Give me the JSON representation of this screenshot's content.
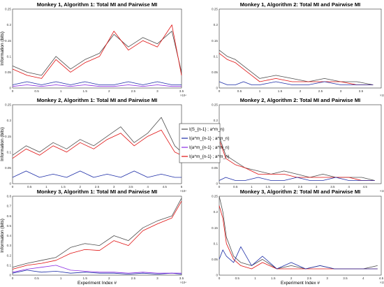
{
  "colors": {
    "total": "#4d4d4d",
    "pair_state": "#222222",
    "pair_prev": "#1f2fa8",
    "pair_red": "#e01010",
    "pair_purple": "#8a2be2"
  },
  "legend": {
    "entries": [
      "I(S_{n-1} ; a^m_n)",
      "I(a^m_{n-1} ; a^m_n)",
      "I(a^m_{n-1} ; a^m_n)",
      "I(a^m_{n-1} ; a^m_n)"
    ],
    "colors": [
      "#4d4d4d",
      "#1f2fa8",
      "#8a2be2",
      "#e01010"
    ]
  },
  "chart_data": [
    {
      "type": "line",
      "title": "Monkey 1, Algorithm 1: Total MI and Pairwise MI",
      "ylabel": "Information (bits)",
      "xlabel": "",
      "xlim": [
        0,
        3.5
      ],
      "ylim": [
        0,
        0.25
      ],
      "x_multiplier": "×10⁴",
      "xticks": [
        "0",
        "0.5",
        "1",
        "1.5",
        "2",
        "2.5",
        "3",
        "3.5"
      ],
      "yticks": [
        "0",
        "0.05",
        "0.1",
        "0.15",
        "0.2",
        "0.25"
      ],
      "series": [
        {
          "color": "#4d4d4d",
          "x": [
            0,
            0.3,
            0.6,
            0.9,
            1.2,
            1.5,
            1.8,
            2.1,
            2.4,
            2.7,
            3.0,
            3.3,
            3.5
          ],
          "values": [
            0.07,
            0.05,
            0.04,
            0.1,
            0.06,
            0.09,
            0.11,
            0.17,
            0.13,
            0.16,
            0.14,
            0.18,
            0.05
          ]
        },
        {
          "color": "#e01010",
          "x": [
            0,
            0.3,
            0.6,
            0.9,
            1.2,
            1.5,
            1.8,
            2.1,
            2.4,
            2.7,
            3.0,
            3.3,
            3.5
          ],
          "values": [
            0.06,
            0.04,
            0.03,
            0.09,
            0.05,
            0.08,
            0.1,
            0.18,
            0.12,
            0.15,
            0.13,
            0.2,
            0.04
          ]
        },
        {
          "color": "#1f2fa8",
          "x": [
            0,
            0.3,
            0.6,
            0.9,
            1.2,
            1.5,
            1.8,
            2.1,
            2.4,
            2.7,
            3.0,
            3.3,
            3.5
          ],
          "values": [
            0.01,
            0.02,
            0.01,
            0.02,
            0.01,
            0.02,
            0.01,
            0.01,
            0.02,
            0.01,
            0.02,
            0.01,
            0.01
          ]
        },
        {
          "color": "#8a2be2",
          "x": [
            0,
            0.3,
            0.6,
            0.9,
            1.2,
            1.5,
            1.8,
            2.1,
            2.4,
            2.7,
            3.0,
            3.3,
            3.5
          ],
          "values": [
            0.005,
            0.01,
            0.005,
            0.01,
            0.005,
            0.01,
            0.005,
            0.005,
            0.01,
            0.005,
            0.01,
            0.005,
            0.005
          ]
        }
      ]
    },
    {
      "type": "line",
      "title": "Monkey 1, Algorithm 2: Total MI and Pairwise MI",
      "ylabel": "",
      "xlabel": "",
      "xlim": [
        0,
        4
      ],
      "ylim": [
        0,
        0.25
      ],
      "x_multiplier": "×10⁴",
      "xticks": [
        "0",
        "0.5",
        "1",
        "1.5",
        "2",
        "2.5",
        "3",
        "3.5"
      ],
      "yticks": [
        "0",
        "0.05",
        "0.1",
        "0.15",
        "0.2",
        "0.25"
      ],
      "series": [
        {
          "color": "#4d4d4d",
          "x": [
            0,
            0.2,
            0.4,
            0.6,
            0.8,
            1.0,
            1.4,
            1.8,
            2.2,
            2.6,
            3.0,
            3.4,
            3.8
          ],
          "values": [
            0.12,
            0.1,
            0.09,
            0.07,
            0.05,
            0.03,
            0.04,
            0.03,
            0.02,
            0.03,
            0.02,
            0.02,
            0.01
          ]
        },
        {
          "color": "#e01010",
          "x": [
            0,
            0.2,
            0.4,
            0.6,
            0.8,
            1.0,
            1.4,
            1.8,
            2.2,
            2.6,
            3.0,
            3.4,
            3.8
          ],
          "values": [
            0.11,
            0.09,
            0.08,
            0.06,
            0.04,
            0.02,
            0.03,
            0.02,
            0.02,
            0.02,
            0.02,
            0.01,
            0.01
          ]
        },
        {
          "color": "#1f2fa8",
          "x": [
            0,
            0.2,
            0.4,
            0.6,
            0.8,
            1.0,
            1.4,
            1.8,
            2.2,
            2.6,
            3.0,
            3.4,
            3.8
          ],
          "values": [
            0.02,
            0.01,
            0.01,
            0.02,
            0.01,
            0.01,
            0.02,
            0.01,
            0.01,
            0.02,
            0.01,
            0.01,
            0.01
          ]
        }
      ]
    },
    {
      "type": "line",
      "title": "Monkey 2, Algorithm 1: Total MI and Pairwise MI",
      "ylabel": "Information (bits)",
      "xlabel": "",
      "xlim": [
        0,
        5
      ],
      "ylim": [
        0,
        0.25
      ],
      "x_multiplier": "×10⁴",
      "xticks": [
        "0",
        "0.5",
        "1",
        "1.5",
        "2",
        "2.5",
        "3",
        "3.5",
        "4",
        "4.5",
        "5"
      ],
      "yticks": [
        "0",
        "0.05",
        "0.1",
        "0.15",
        "0.2",
        "0.25"
      ],
      "series": [
        {
          "color": "#4d4d4d",
          "x": [
            0,
            0.4,
            0.8,
            1.2,
            1.6,
            2.0,
            2.4,
            2.8,
            3.2,
            3.6,
            4.0,
            4.4,
            4.8,
            5.0
          ],
          "values": [
            0.09,
            0.12,
            0.1,
            0.13,
            0.11,
            0.14,
            0.12,
            0.15,
            0.18,
            0.13,
            0.16,
            0.21,
            0.12,
            0.1
          ]
        },
        {
          "color": "#e01010",
          "x": [
            0,
            0.4,
            0.8,
            1.2,
            1.6,
            2.0,
            2.4,
            2.8,
            3.2,
            3.6,
            4.0,
            4.4,
            4.8,
            5.0
          ],
          "values": [
            0.08,
            0.11,
            0.09,
            0.12,
            0.1,
            0.13,
            0.11,
            0.14,
            0.16,
            0.12,
            0.15,
            0.17,
            0.1,
            0.09
          ]
        },
        {
          "color": "#1f2fa8",
          "x": [
            0,
            0.4,
            0.8,
            1.2,
            1.6,
            2.0,
            2.4,
            2.8,
            3.2,
            3.6,
            4.0,
            4.4,
            4.8,
            5.0
          ],
          "values": [
            0.02,
            0.04,
            0.02,
            0.03,
            0.02,
            0.04,
            0.02,
            0.03,
            0.02,
            0.04,
            0.02,
            0.03,
            0.02,
            0.02
          ]
        }
      ]
    },
    {
      "type": "line",
      "title": "Monkey 2, Algorithm 2: Total MI and Pairwise MI",
      "ylabel": "",
      "xlabel": "",
      "xlim": [
        0,
        5
      ],
      "ylim": [
        0,
        0.25
      ],
      "x_multiplier": "×10⁴",
      "xticks": [
        "0",
        "0.5",
        "1",
        "1.5",
        "2",
        "2.5",
        "3",
        "3.5",
        "4",
        "4.5"
      ],
      "yticks": [
        "0",
        "0.05",
        "0.1",
        "0.15",
        "0.2",
        "0.25"
      ],
      "series": [
        {
          "color": "#4d4d4d",
          "x": [
            0,
            0.2,
            0.5,
            0.8,
            1.2,
            1.6,
            2.0,
            2.4,
            2.8,
            3.2,
            3.6,
            4.0,
            4.4,
            4.8
          ],
          "values": [
            0.15,
            0.09,
            0.07,
            0.05,
            0.04,
            0.03,
            0.04,
            0.03,
            0.02,
            0.03,
            0.02,
            0.02,
            0.02,
            0.01
          ]
        },
        {
          "color": "#e01010",
          "x": [
            0,
            0.2,
            0.5,
            0.8,
            1.2,
            1.6,
            2.0,
            2.4,
            2.8,
            3.2,
            3.6,
            4.0,
            4.4,
            4.8
          ],
          "values": [
            0.14,
            0.08,
            0.06,
            0.05,
            0.03,
            0.03,
            0.03,
            0.02,
            0.02,
            0.02,
            0.02,
            0.02,
            0.01,
            0.01
          ]
        },
        {
          "color": "#1f2fa8",
          "x": [
            0,
            0.2,
            0.5,
            0.8,
            1.2,
            1.6,
            2.0,
            2.4,
            2.8,
            3.2,
            3.6,
            4.0,
            4.4,
            4.8
          ],
          "values": [
            0.01,
            0.02,
            0.01,
            0.01,
            0.02,
            0.01,
            0.01,
            0.02,
            0.01,
            0.01,
            0.02,
            0.01,
            0.01,
            0.01
          ]
        }
      ]
    },
    {
      "type": "line",
      "title": "Monkey 3, Algorithm 1: Total MI and Pairwise MI",
      "ylabel": "Information (bits)",
      "xlabel": "Experiment Index #",
      "xlim": [
        0,
        3.5
      ],
      "ylim": [
        0,
        0.8
      ],
      "x_multiplier": "×10⁴",
      "xticks": [
        "0",
        "0.5",
        "1",
        "1.5",
        "2",
        "2.5",
        "3",
        "3.5"
      ],
      "yticks": [
        "0",
        "0.1",
        "0.2",
        "0.3",
        "0.4",
        "0.5",
        "0.6",
        "0.7",
        "0.8"
      ],
      "series": [
        {
          "color": "#4d4d4d",
          "x": [
            0,
            0.3,
            0.6,
            0.9,
            1.2,
            1.5,
            1.8,
            2.1,
            2.4,
            2.7,
            3.0,
            3.3,
            3.5
          ],
          "values": [
            0.08,
            0.12,
            0.15,
            0.18,
            0.28,
            0.32,
            0.3,
            0.4,
            0.35,
            0.48,
            0.55,
            0.6,
            0.78
          ]
        },
        {
          "color": "#e01010",
          "x": [
            0,
            0.3,
            0.6,
            0.9,
            1.2,
            1.5,
            1.8,
            2.1,
            2.4,
            2.7,
            3.0,
            3.3,
            3.5
          ],
          "values": [
            0.06,
            0.1,
            0.12,
            0.15,
            0.22,
            0.26,
            0.25,
            0.35,
            0.3,
            0.45,
            0.52,
            0.58,
            0.75
          ]
        },
        {
          "color": "#1f2fa8",
          "x": [
            0,
            0.3,
            0.6,
            0.9,
            1.2,
            1.5,
            1.8,
            2.1,
            2.4,
            2.7,
            3.0,
            3.3,
            3.5
          ],
          "values": [
            0.02,
            0.05,
            0.03,
            0.04,
            0.02,
            0.03,
            0.02,
            0.02,
            0.01,
            0.02,
            0.01,
            0.02,
            0.01
          ]
        },
        {
          "color": "#8a2be2",
          "x": [
            0,
            0.3,
            0.6,
            0.9,
            1.2,
            1.5,
            1.8,
            2.1,
            2.4,
            2.7,
            3.0,
            3.3,
            3.5
          ],
          "values": [
            0.03,
            0.06,
            0.08,
            0.1,
            0.05,
            0.04,
            0.03,
            0.03,
            0.02,
            0.03,
            0.02,
            0.02,
            0.02
          ]
        }
      ]
    },
    {
      "type": "line",
      "title": "Monkey 3, Algorithm 2: Total MI and Pairwise MI",
      "ylabel": "",
      "xlabel": "Experiment Index #",
      "xlim": [
        0,
        4.5
      ],
      "ylim": [
        0,
        0.25
      ],
      "x_multiplier": "×10⁴",
      "xticks": [
        "0",
        "0.5",
        "1",
        "1.5",
        "2",
        "2.5",
        "3",
        "3.5",
        "4",
        "4.5"
      ],
      "yticks": [
        "0",
        "0.05",
        "0.1",
        "0.15",
        "0.2",
        "0.25"
      ],
      "series": [
        {
          "color": "#4d4d4d",
          "x": [
            0,
            0.1,
            0.2,
            0.4,
            0.6,
            0.9,
            1.2,
            1.6,
            2.0,
            2.4,
            2.8,
            3.2,
            3.6,
            4.0,
            4.4
          ],
          "values": [
            0.25,
            0.2,
            0.12,
            0.06,
            0.04,
            0.03,
            0.05,
            0.02,
            0.03,
            0.02,
            0.03,
            0.02,
            0.02,
            0.02,
            0.03
          ]
        },
        {
          "color": "#e01010",
          "x": [
            0,
            0.1,
            0.2,
            0.4,
            0.6,
            0.9,
            1.2,
            1.6,
            2.0,
            2.4,
            2.8,
            3.2,
            3.6,
            4.0,
            4.4
          ],
          "values": [
            0.22,
            0.18,
            0.1,
            0.05,
            0.03,
            0.02,
            0.04,
            0.02,
            0.02,
            0.02,
            0.02,
            0.02,
            0.02,
            0.02,
            0.02
          ]
        },
        {
          "color": "#1f2fa8",
          "x": [
            0,
            0.1,
            0.2,
            0.4,
            0.6,
            0.9,
            1.2,
            1.6,
            2.0,
            2.4,
            2.8,
            3.2,
            3.6,
            4.0,
            4.4
          ],
          "values": [
            0.05,
            0.08,
            0.06,
            0.04,
            0.09,
            0.03,
            0.06,
            0.02,
            0.04,
            0.02,
            0.03,
            0.02,
            0.02,
            0.02,
            0.02
          ]
        }
      ]
    }
  ]
}
